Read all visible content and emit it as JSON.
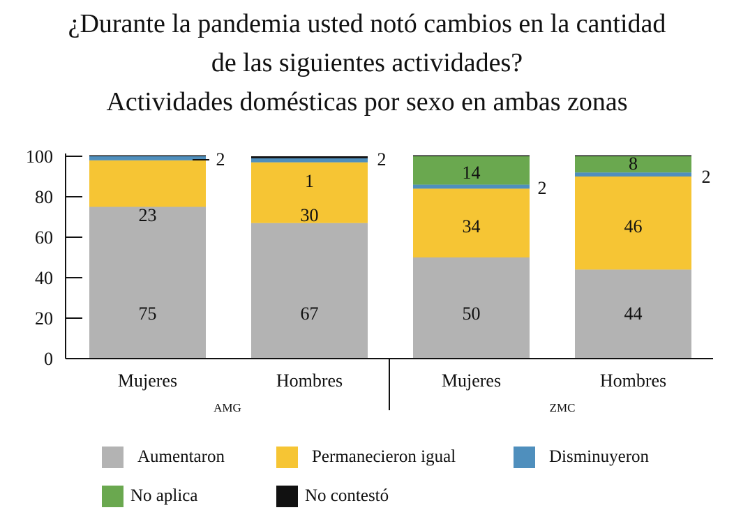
{
  "title": {
    "line1": "¿Durante la pandemia usted notó cambios en la cantidad",
    "line2": "de las siguientes actividades?",
    "line3": "Actividades domésticas por sexo en ambas zonas"
  },
  "chart_data": {
    "type": "bar",
    "stacked": true,
    "categories": [
      "Mujeres",
      "Hombres",
      "Mujeres",
      "Hombres"
    ],
    "groups": [
      {
        "label": "AMG",
        "categories": [
          0,
          1
        ]
      },
      {
        "label": "ZMC",
        "categories": [
          2,
          3
        ]
      }
    ],
    "series": [
      {
        "name": "Aumentaron",
        "color": "#b3b3b3",
        "values": [
          75,
          67,
          50,
          44
        ],
        "labels": [
          "75",
          "67",
          "50",
          "44"
        ]
      },
      {
        "name": "Permanecieron igual",
        "color": "#f6c534",
        "values": [
          23,
          30,
          34,
          46
        ],
        "labels": [
          "23",
          "30",
          "34",
          "46"
        ]
      },
      {
        "name": "Disminuyeron",
        "color": "#4f8fbd",
        "values": [
          2,
          2,
          2,
          2
        ],
        "labels": [
          "2",
          "2",
          "2",
          "2"
        ]
      },
      {
        "name": "No aplica",
        "color": "#6aa84f",
        "values": [
          0,
          0,
          14,
          8
        ],
        "labels": [
          "",
          "",
          "14",
          "8"
        ]
      },
      {
        "name": "No contestó",
        "color": "#111111",
        "values": [
          0.5,
          1,
          0.5,
          0.5
        ],
        "labels": [
          "",
          "1",
          "",
          ""
        ]
      }
    ],
    "ylim": [
      0,
      100
    ],
    "yticks": [
      "0",
      "20",
      "40",
      "60",
      "80",
      "100"
    ],
    "legend_position": "bottom"
  }
}
